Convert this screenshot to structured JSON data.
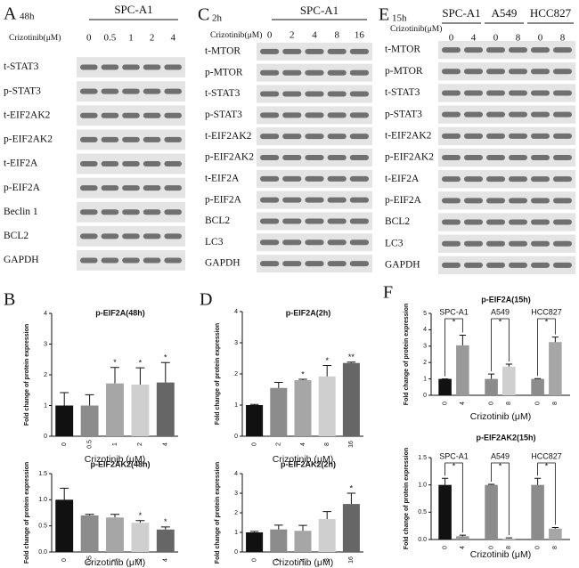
{
  "blots": [
    {
      "panel": "A",
      "time": "48h",
      "cell_lines": [
        "SPC-A1"
      ],
      "dose_label": "Crizotinib(μM)",
      "lanes": [
        "0",
        "0.5",
        "1",
        "2",
        "4"
      ],
      "rows": [
        "t-STAT3",
        "p-STAT3",
        "t-EIF2AK2",
        "p-EIF2AK2",
        "t-EIF2A",
        "p-EIF2A",
        "Beclin 1",
        "BCL2",
        "GAPDH"
      ]
    },
    {
      "panel": "C",
      "time": "2h",
      "cell_lines": [
        "SPC-A1"
      ],
      "dose_label": "Crizotinib(μM)",
      "lanes": [
        "0",
        "2",
        "4",
        "8",
        "16"
      ],
      "rows": [
        "t-MTOR",
        "p-MTOR",
        "t-STAT3",
        "p-STAT3",
        "t-EIF2AK2",
        "p-EIF2AK2",
        "t-EIF2A",
        "p-EIF2A",
        "BCL2",
        "LC3",
        "GAPDH"
      ]
    },
    {
      "panel": "E",
      "time": "15h",
      "cell_lines": [
        "SPC-A1",
        "A549",
        "HCC827"
      ],
      "dose_label": "Crizotinib(μM)",
      "lanes": [
        "0",
        "4",
        "0",
        "8",
        "0",
        "8"
      ],
      "rows": [
        "t-MTOR",
        "p-MTOR",
        "t-STAT3",
        "p-STAT3",
        "t-EIF2AK2",
        "p-EIF2AK2",
        "t-EIF2A",
        "p-EIF2A",
        "BCL2",
        "LC3",
        "GAPDH"
      ]
    }
  ],
  "chart_data": [
    {
      "type": "bar",
      "panel": "B",
      "title": "p-EIF2A(48h)",
      "y_label": "Fold change of protein expression",
      "x_label": "Crizotinib (μM)",
      "categories": [
        "0",
        "0.5",
        "1",
        "2",
        "4"
      ],
      "values": [
        1.0,
        1.0,
        1.72,
        1.68,
        1.75
      ],
      "errors": [
        0.42,
        0.35,
        0.52,
        0.55,
        0.65
      ],
      "annotations": [
        null,
        null,
        "*",
        "*",
        "*"
      ],
      "colors": [
        "#111111",
        "#8c8c8c",
        "#a6a6a6",
        "#cfcfcf",
        "#666666"
      ],
      "ylim": [
        0,
        4
      ],
      "yticks": [
        0,
        1,
        2,
        3,
        4
      ]
    },
    {
      "type": "bar",
      "title": "p-EIF2AK2(48h)",
      "y_label": "Fold change of protein expression",
      "x_label": "Crizotinib (μM)",
      "categories": [
        "0",
        "0.5",
        "1",
        "2",
        "4"
      ],
      "values": [
        1.0,
        0.7,
        0.66,
        0.56,
        0.43
      ],
      "errors": [
        0.22,
        0.02,
        0.06,
        0.04,
        0.05
      ],
      "annotations": [
        null,
        null,
        null,
        "*",
        "*"
      ],
      "colors": [
        "#111111",
        "#8c8c8c",
        "#a6a6a6",
        "#cfcfcf",
        "#666666"
      ],
      "ylim": [
        0,
        1.5
      ],
      "yticks": [
        {
          "value": 0,
          "label": "0.0"
        },
        {
          "value": 0.5,
          "label": "0.5"
        },
        {
          "value": 1,
          "label": "1.0"
        },
        {
          "value": 1.5,
          "label": "1.5"
        }
      ]
    },
    {
      "type": "bar",
      "panel": "D",
      "title": "p-EIF2A(2h)",
      "y_label": "Fold change of protein expression",
      "x_label": "Crizotinib (μM)",
      "categories": [
        "0",
        "2",
        "4",
        "8",
        "16"
      ],
      "values": [
        1.0,
        1.55,
        1.8,
        1.92,
        2.35
      ],
      "errors": [
        0.02,
        0.18,
        0.03,
        0.35,
        0.03
      ],
      "annotations": [
        null,
        null,
        "*",
        "*",
        "**"
      ],
      "colors": [
        "#111111",
        "#8c8c8c",
        "#a6a6a6",
        "#cfcfcf",
        "#666666"
      ],
      "ylim": [
        0,
        4
      ],
      "yticks": [
        0,
        1,
        2,
        3,
        4
      ]
    },
    {
      "type": "bar",
      "title": "p-EIF2AK2(2h)",
      "y_label": "Fold change of protein expression",
      "x_label": "Crizotinib (μM)",
      "categories": [
        "0",
        "2",
        "4",
        "8",
        "16"
      ],
      "values": [
        1.0,
        1.15,
        1.08,
        1.68,
        2.45
      ],
      "errors": [
        0.05,
        0.22,
        0.28,
        0.38,
        0.55
      ],
      "annotations": [
        null,
        null,
        null,
        null,
        "*"
      ],
      "colors": [
        "#111111",
        "#8c8c8c",
        "#a6a6a6",
        "#cfcfcf",
        "#666666"
      ],
      "ylim": [
        0,
        4
      ],
      "yticks": [
        0,
        1,
        2,
        3,
        4
      ]
    },
    {
      "type": "grouped_bar",
      "panel": "F",
      "title": "p-EIF2A(15h)",
      "y_label": "Fold change of protein expression",
      "x_label": "Crizotinib (μM)",
      "categories": [
        "0",
        "4",
        "0",
        "8",
        "0",
        "8"
      ],
      "values": [
        1.0,
        3.05,
        1.0,
        1.75,
        1.0,
        3.25
      ],
      "errors": [
        0.0,
        0.62,
        0.3,
        0.15,
        0.02,
        0.3
      ],
      "group_labels": [
        "SPC-A1",
        "A549",
        "HCC827"
      ],
      "group_annotations": [
        "*",
        "*",
        "*"
      ],
      "colors": [
        "#111111",
        "#999999",
        "#8c8c8c",
        "#cfcfcf",
        "#8c8c8c",
        "#a6a6a6"
      ],
      "ylim": [
        0,
        5
      ],
      "yticks": [
        0,
        1,
        2,
        3,
        4,
        5
      ]
    },
    {
      "type": "grouped_bar",
      "title": "p-EIF2AK2(15h)",
      "y_label": "Fold change of protein expression",
      "x_label": "Crizotinib (μM)",
      "categories": [
        "0",
        "4",
        "0",
        "8",
        "0",
        "8"
      ],
      "values": [
        1.0,
        0.06,
        1.0,
        0.02,
        1.0,
        0.2
      ],
      "errors": [
        0.12,
        0.02,
        0.01,
        0.01,
        0.12,
        0.02
      ],
      "group_labels": [
        "SPC-A1",
        "A549",
        "HCC827"
      ],
      "group_annotations": [
        "*",
        "*",
        "*"
      ],
      "colors": [
        "#111111",
        "#999999",
        "#8c8c8c",
        "#cfcfcf",
        "#8c8c8c",
        "#a6a6a6"
      ],
      "ylim": [
        0,
        1.5
      ],
      "yticks": [
        {
          "value": 0,
          "label": "0.0"
        },
        {
          "value": 0.5,
          "label": "0.5"
        },
        {
          "value": 1,
          "label": "1.0"
        },
        {
          "value": 1.5,
          "label": "1.5"
        }
      ]
    }
  ]
}
